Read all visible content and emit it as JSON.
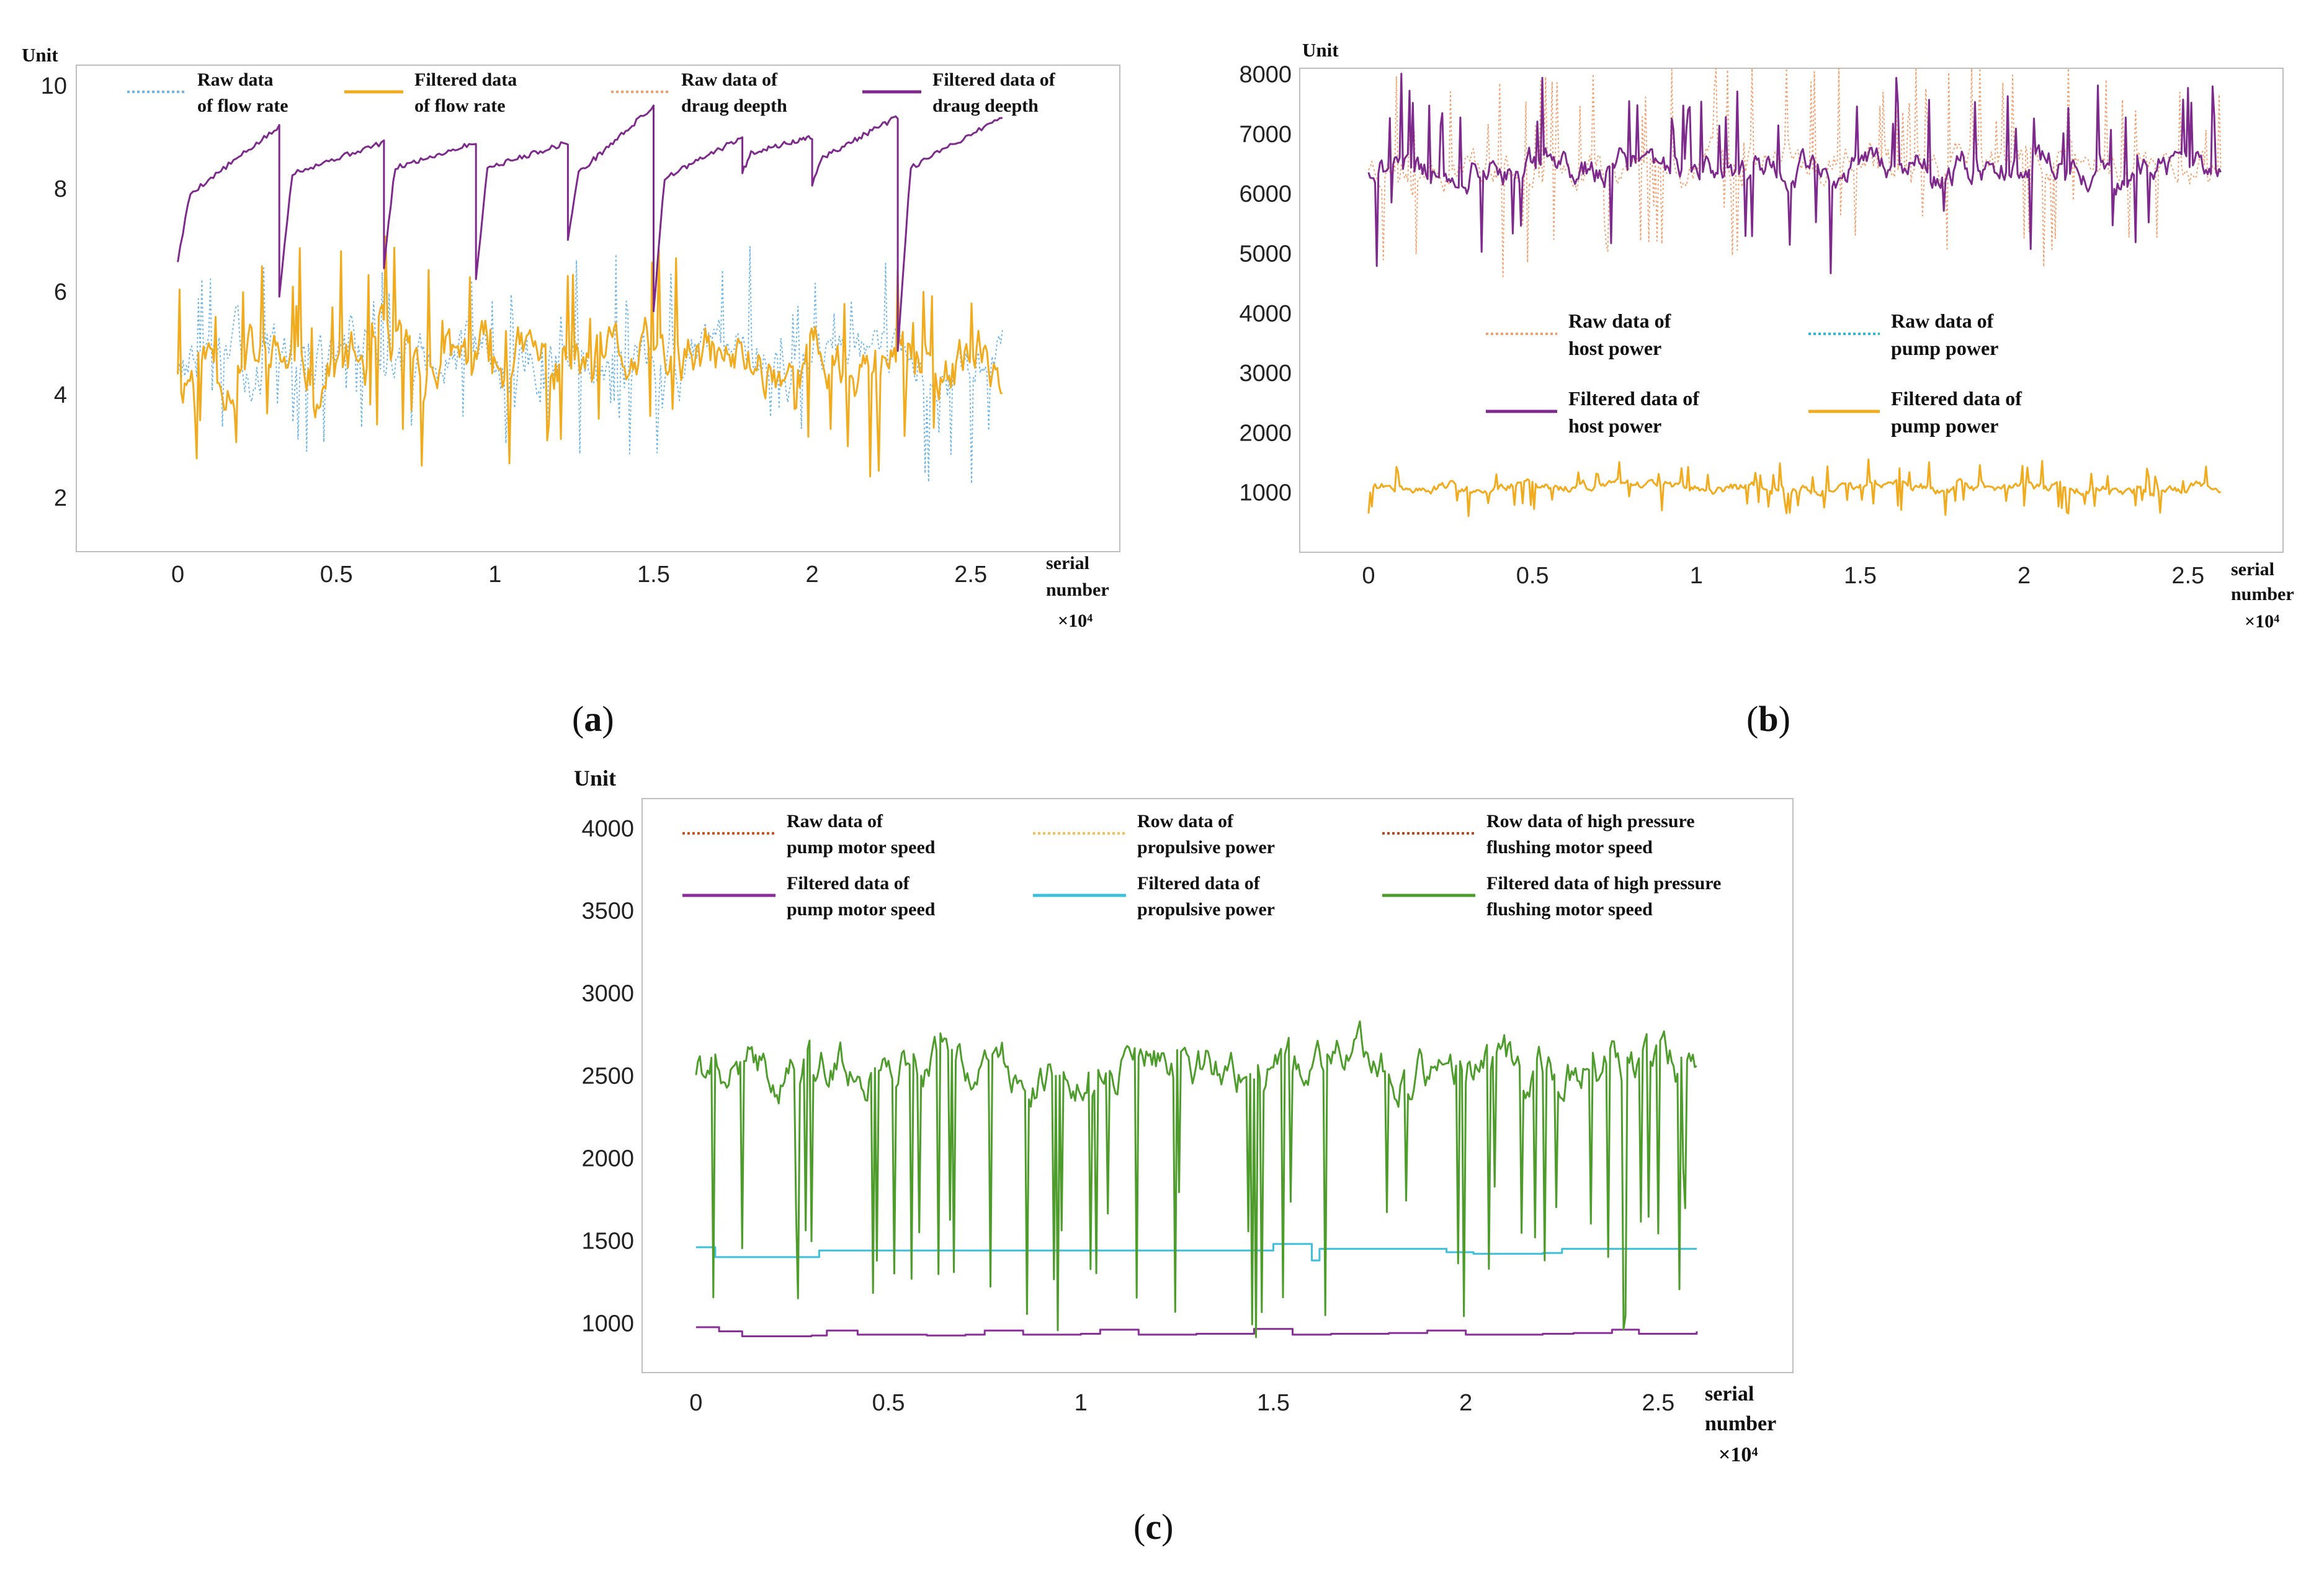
{
  "figure": {
    "panels": [
      "a",
      "b",
      "c"
    ]
  },
  "chart_data": [
    {
      "id": "a",
      "type": "line",
      "caption": "(a)",
      "caption_letter": "a",
      "ylabel": "Unit",
      "xlabel_lines": [
        "serial",
        "number"
      ],
      "x_multiplier": "×10⁴",
      "xlim": [
        -0.32,
        2.97
      ],
      "ylim": [
        0.95,
        10.4
      ],
      "xticks": [
        0,
        0.5,
        1,
        1.5,
        2,
        2.5
      ],
      "yticks": [
        2,
        4,
        6,
        8,
        10
      ],
      "xtick_labels": [
        "0",
        "0.5",
        "1",
        "1.5",
        "2",
        "2.5"
      ],
      "ytick_labels": [
        "2",
        "4",
        "6",
        "8",
        "10"
      ],
      "series": [
        {
          "name": "Raw data of flow rate",
          "label_lines": [
            "Raw data",
            "of flow rate"
          ],
          "style": "dotted",
          "color": "#6fb6e6",
          "gen": {
            "kind": "noise",
            "x0": 0,
            "x1": 2.6,
            "n": 480,
            "base": 4.6,
            "amp": 1.1,
            "spike": 1.9,
            "seed": 13
          }
        },
        {
          "name": "Filtered data of flow rate",
          "label_lines": [
            "Filtered data",
            "of flow rate"
          ],
          "style": "solid",
          "color": "#f0ab1e",
          "gen": {
            "kind": "noise",
            "x0": 0,
            "x1": 2.6,
            "n": 480,
            "base": 4.6,
            "amp": 1.1,
            "spike": 1.9,
            "seed": 11
          }
        },
        {
          "name": "Raw data of draug deepth",
          "label_lines": [
            "Raw data of",
            "draug deepth"
          ],
          "style": "dotted",
          "color": "#f2a070",
          "gen": {
            "kind": "none"
          }
        },
        {
          "name": "Filtered data of draug deepth",
          "label_lines": [
            "Filtered data of",
            "draug deepth"
          ],
          "style": "solid",
          "color": "#7d2a8c",
          "gen": {
            "kind": "segments",
            "noise": 0.05,
            "seed": 5,
            "segs": [
              [
                0,
                0.32,
                6.6,
                7.9,
                9.2
              ],
              [
                0.32,
                0.65,
                5.9,
                8.3,
                8.9
              ],
              [
                0.65,
                0.94,
                6.5,
                8.4,
                8.9
              ],
              [
                0.94,
                1.23,
                6.2,
                8.4,
                8.9
              ],
              [
                1.23,
                1.5,
                7.0,
                8.3,
                9.6
              ],
              [
                1.5,
                1.78,
                5.6,
                8.2,
                9.0
              ],
              [
                1.78,
                2.0,
                8.3,
                8.7,
                9.0
              ],
              [
                2.0,
                2.27,
                8.1,
                8.6,
                9.4
              ],
              [
                2.27,
                2.6,
                4.8,
                8.4,
                9.4
              ]
            ]
          }
        }
      ]
    },
    {
      "id": "b",
      "type": "line",
      "caption": "(b)",
      "caption_letter": "b",
      "ylabel": "Unit",
      "xlabel_lines": [
        "serial",
        "number"
      ],
      "x_multiplier": "×10⁴",
      "xlim": [
        -0.21,
        2.79
      ],
      "ylim": [
        0,
        8100
      ],
      "xticks": [
        0,
        0.5,
        1,
        1.5,
        2,
        2.5
      ],
      "yticks": [
        1000,
        2000,
        3000,
        4000,
        5000,
        6000,
        7000,
        8000
      ],
      "xtick_labels": [
        "0",
        "0.5",
        "1",
        "1.5",
        "2",
        "2.5"
      ],
      "ytick_labels": [
        "1000",
        "2000",
        "3000",
        "4000",
        "5000",
        "6000",
        "7000",
        "8000"
      ],
      "series": [
        {
          "name": "Raw data of host power",
          "label_lines": [
            "Raw data of",
            "host power"
          ],
          "style": "dotted",
          "color": "#f2a070",
          "gen": {
            "kind": "noise",
            "x0": 0,
            "x1": 2.6,
            "n": 520,
            "base": 6500,
            "amp": 550,
            "spike": 1700,
            "seed": 23
          }
        },
        {
          "name": "Raw data of pump power",
          "label_lines": [
            "Raw data of",
            "pump power"
          ],
          "style": "dotted",
          "color": "#33b8d8",
          "gen": {
            "kind": "none"
          }
        },
        {
          "name": "Filtered data of host power",
          "label_lines": [
            "Filtered data of",
            "host power"
          ],
          "style": "solid",
          "color": "#7d2a8c",
          "gen": {
            "kind": "noise",
            "x0": 0,
            "x1": 2.6,
            "n": 520,
            "base": 6450,
            "amp": 500,
            "spike": 1500,
            "seed": 21
          }
        },
        {
          "name": "Filtered data of pump power",
          "label_lines": [
            "Filtered data of",
            "pump power"
          ],
          "style": "solid",
          "color": "#f0ab1e",
          "gen": {
            "kind": "noise",
            "x0": 0,
            "x1": 2.6,
            "n": 520,
            "base": 1080,
            "amp": 170,
            "spike": 450,
            "seed": 31
          }
        }
      ]
    },
    {
      "id": "c",
      "type": "line",
      "caption": "(c)",
      "caption_letter": "c",
      "ylabel": "Unit",
      "xlabel_lines": [
        "serial",
        "number"
      ],
      "x_multiplier": "×10⁴",
      "xlim": [
        -0.14,
        2.85
      ],
      "ylim": [
        700,
        4180
      ],
      "xticks": [
        0,
        0.5,
        1,
        1.5,
        2,
        2.5
      ],
      "yticks": [
        1000,
        1500,
        2000,
        2500,
        3000,
        3500,
        4000
      ],
      "xtick_labels": [
        "0",
        "0.5",
        "1",
        "1.5",
        "2",
        "2.5"
      ],
      "ytick_labels": [
        "1000",
        "1500",
        "2000",
        "2500",
        "3000",
        "3500",
        "4000"
      ],
      "series": [
        {
          "name": "Raw data of pump motor speed",
          "label_lines": [
            "Raw data of",
            "pump motor speed"
          ],
          "style": "dotted",
          "color": "#d2501e",
          "gen": {
            "kind": "none"
          }
        },
        {
          "name": "Row data of propulsive power",
          "label_lines": [
            "Row data of",
            "propulsive power"
          ],
          "style": "dotted",
          "color": "#f5c050",
          "gen": {
            "kind": "none"
          }
        },
        {
          "name": "Row data of high pressure flushing motor speed",
          "label_lines": [
            "Row data of high pressure",
            "flushing motor speed"
          ],
          "style": "dotted",
          "color": "#b8481e",
          "gen": {
            "kind": "none"
          }
        },
        {
          "name": "Filtered data of pump motor speed",
          "label_lines": [
            "Filtered data of",
            "pump motor speed"
          ],
          "style": "solid",
          "color": "#8a2e9a",
          "gen": {
            "kind": "steps",
            "pts": [
              [
                0,
                975
              ],
              [
                0.06,
                950
              ],
              [
                0.12,
                920
              ],
              [
                0.3,
                925
              ],
              [
                0.34,
                955
              ],
              [
                0.42,
                930
              ],
              [
                0.6,
                925
              ],
              [
                0.7,
                930
              ],
              [
                0.75,
                955
              ],
              [
                0.85,
                930
              ],
              [
                1.0,
                935
              ],
              [
                1.05,
                960
              ],
              [
                1.15,
                930
              ],
              [
                1.3,
                935
              ],
              [
                1.45,
                965
              ],
              [
                1.55,
                930
              ],
              [
                1.65,
                935
              ],
              [
                1.8,
                940
              ],
              [
                1.9,
                955
              ],
              [
                2.0,
                930
              ],
              [
                2.2,
                935
              ],
              [
                2.28,
                940
              ],
              [
                2.38,
                960
              ],
              [
                2.45,
                935
              ],
              [
                2.6,
                950
              ]
            ]
          }
        },
        {
          "name": "Filtered data of propulsive power",
          "label_lines": [
            "Filtered data of",
            "propulsive power"
          ],
          "style": "solid",
          "color": "#3cc0dc",
          "gen": {
            "kind": "steps",
            "pts": [
              [
                0,
                1460
              ],
              [
                0.05,
                1400
              ],
              [
                0.32,
                1440
              ],
              [
                1.5,
                1480
              ],
              [
                1.6,
                1380
              ],
              [
                1.62,
                1450
              ],
              [
                1.95,
                1430
              ],
              [
                2.02,
                1420
              ],
              [
                2.2,
                1425
              ],
              [
                2.25,
                1450
              ],
              [
                2.6,
                1450
              ]
            ]
          }
        },
        {
          "name": "Filtered data of high pressure flushing motor speed",
          "label_lines": [
            "Filtered data of high pressure",
            "flushing motor speed"
          ],
          "style": "solid",
          "color": "#4e9c2c",
          "gen": {
            "kind": "noise",
            "x0": 0,
            "x1": 2.6,
            "n": 520,
            "base": 2550,
            "amp": 260,
            "spike": 1600,
            "seed": 41,
            "down": true
          }
        }
      ]
    }
  ]
}
